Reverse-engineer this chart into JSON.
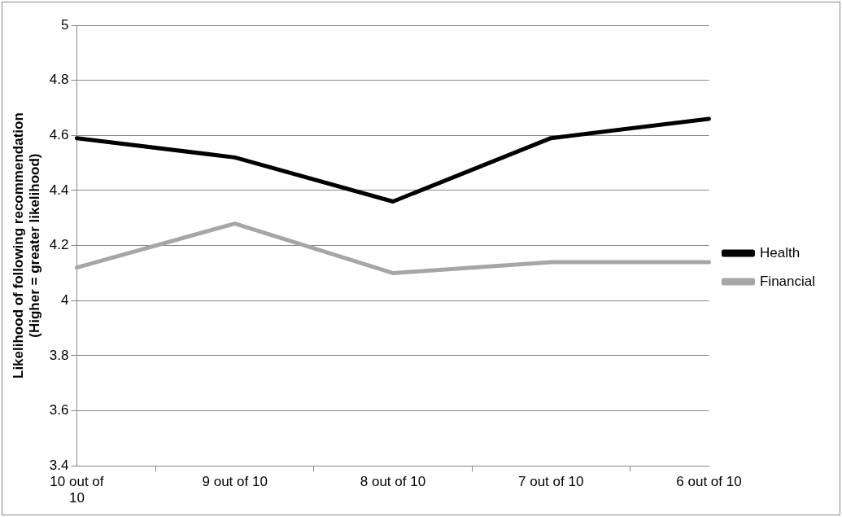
{
  "chart_data": {
    "type": "line",
    "ylabel": "Likelihood of following recommendation (Higher = greater likelihood)",
    "categories": [
      "10 out of 10",
      "9 out of 10",
      "8 out of 10",
      "7 out of 10",
      "6 out of 10"
    ],
    "series": [
      {
        "name": "Health",
        "color": "#000000",
        "values": [
          4.59,
          4.52,
          4.36,
          4.59,
          4.66
        ]
      },
      {
        "name": "Financial",
        "color": "#a6a6a6",
        "values": [
          4.12,
          4.28,
          4.1,
          4.14,
          4.14
        ]
      }
    ],
    "ylim": [
      3.4,
      5
    ],
    "yticks": [
      3.4,
      3.6,
      3.8,
      4,
      4.2,
      4.4,
      4.6,
      4.8,
      5
    ],
    "grid": "y",
    "legend": "right",
    "marker": "none",
    "line_style": "solid"
  }
}
